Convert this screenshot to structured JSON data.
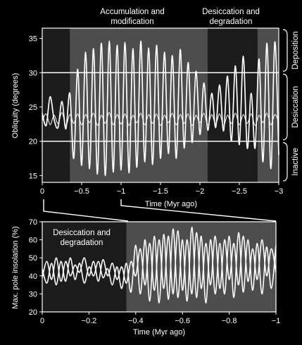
{
  "chart_data": [
    {
      "type": "line",
      "ylabel": "Obliquity (degrees)",
      "xlabel": "Time (Myr ago)",
      "xlim": [
        0,
        -3
      ],
      "ylim": [
        14,
        36.5
      ],
      "xticks": [
        "0",
        "−0.5",
        "−1",
        "−1.5",
        "−2",
        "−2.5",
        "−3"
      ],
      "xtick_values": [
        0,
        -0.5,
        -1,
        -1.5,
        -2,
        -2.5,
        -3
      ],
      "yticks": [
        "15",
        "20",
        "25",
        "30",
        "35"
      ],
      "ytick_values": [
        15,
        20,
        25,
        30,
        35
      ],
      "threshold_lines": [
        30,
        20
      ],
      "shaded_periods": [
        {
          "from": 0,
          "to": -0.35,
          "shade": "#1c1c1c"
        },
        {
          "from": -0.35,
          "to": -2.1,
          "shade": "#4d4d4d"
        },
        {
          "from": -2.1,
          "to": -2.73,
          "shade": "#1c1c1c"
        },
        {
          "from": -2.73,
          "to": -3,
          "shade": "#4d4d4d"
        }
      ],
      "annotations_top": [
        {
          "lines": [
            "Accumulation and",
            "modification"
          ]
        },
        {
          "lines": [
            "Desiccation and",
            "degradation"
          ]
        }
      ],
      "regimes": [
        {
          "label": "Deposition",
          "from": 30,
          "to": 36.5
        },
        {
          "label": "Desiccation",
          "from": 20,
          "to": 30
        },
        {
          "label": "Inactive",
          "from": 14,
          "to": 20
        }
      ],
      "series": [
        {
          "x": [
            0,
            -0.05,
            -0.1,
            -0.15,
            -0.2,
            -0.25,
            -0.3,
            -0.35,
            -0.4,
            -0.45,
            -0.5,
            -0.55,
            -0.6,
            -0.65,
            -0.7,
            -0.75,
            -0.8,
            -0.85,
            -0.9,
            -0.95,
            -1.0,
            -1.05,
            -1.1,
            -1.15,
            -1.2,
            -1.25,
            -1.3,
            -1.35,
            -1.4,
            -1.45,
            -1.5,
            -1.55,
            -1.6,
            -1.65,
            -1.7,
            -1.75,
            -1.8,
            -1.85,
            -1.9,
            -1.95,
            -2.0,
            -2.05,
            -2.1,
            -2.15,
            -2.2,
            -2.25,
            -2.3,
            -2.35,
            -2.4,
            -2.45,
            -2.5,
            -2.55,
            -2.6,
            -2.65,
            -2.7,
            -2.75,
            -2.8,
            -2.85,
            -2.9,
            -2.95,
            -3.0
          ],
          "values": [
            24.1,
            22.3,
            26.5,
            23.2,
            22.0,
            25.8,
            21.8,
            27.0,
            17.5,
            30.5,
            16.5,
            33.0,
            16.0,
            33.5,
            15.2,
            34.3,
            15.0,
            34.6,
            15.5,
            34.0,
            15.8,
            34.4,
            15.4,
            33.5,
            16.2,
            34.6,
            17.0,
            33.6,
            16.6,
            34.0,
            17.5,
            33.0,
            18.2,
            32.5,
            17.5,
            33.4,
            19.0,
            31.5,
            19.8,
            30.2,
            21.0,
            28.5,
            21.6,
            27.0,
            22.0,
            28.2,
            21.5,
            29.5,
            20.0,
            31.0,
            19.5,
            32.4,
            19.0,
            27.0,
            19.0,
            32.0,
            17.0,
            34.3,
            16.0,
            34.5,
            18.0
          ]
        },
        {
          "x": [
            0,
            -0.05,
            -0.1,
            -0.15,
            -0.2,
            -0.25,
            -0.3,
            -0.35,
            -0.4,
            -0.45,
            -0.5,
            -0.55,
            -0.6,
            -0.65,
            -0.7,
            -0.75,
            -0.8,
            -0.85,
            -0.9,
            -0.95,
            -1.0,
            -1.05,
            -1.1,
            -1.15,
            -1.2,
            -1.25,
            -1.3,
            -1.35,
            -1.4,
            -1.45,
            -1.5,
            -1.55,
            -1.6,
            -1.65,
            -1.7,
            -1.75,
            -1.8,
            -1.85,
            -1.9,
            -1.95,
            -2.0,
            -2.05,
            -2.1,
            -2.15,
            -2.2,
            -2.25,
            -2.3,
            -2.35,
            -2.4,
            -2.45,
            -2.5,
            -2.55,
            -2.6,
            -2.65,
            -2.7,
            -2.75,
            -2.8,
            -2.85,
            -2.9,
            -2.95,
            -3.0
          ],
          "values": [
            23.0,
            24.0,
            22.4,
            23.8,
            22.6,
            24.2,
            22.3,
            23.9,
            22.6,
            24.0,
            22.4,
            23.9,
            22.7,
            24.1,
            22.3,
            23.8,
            22.6,
            24.2,
            22.4,
            23.9,
            22.5,
            24.0,
            22.3,
            23.8,
            22.7,
            24.1,
            22.4,
            23.9,
            22.6,
            24.0,
            22.3,
            23.8,
            22.7,
            24.1,
            22.4,
            23.9,
            22.6,
            24.0,
            22.3,
            23.8,
            22.7,
            24.1,
            22.4,
            23.9,
            22.5,
            24.0,
            22.3,
            23.8,
            22.6,
            24.1,
            22.4,
            23.9,
            22.6,
            24.0,
            22.3,
            23.8,
            22.7,
            24.1,
            22.4,
            23.9,
            22.8
          ]
        }
      ]
    },
    {
      "type": "line",
      "ylabel": "Max. pole insolation (%)",
      "xlabel": "Time (Myr ago)",
      "xlim": [
        0,
        -1
      ],
      "ylim": [
        20,
        70
      ],
      "xticks": [
        "0",
        "−0.2",
        "−0.4",
        "−0.6",
        "−0.8",
        "−1"
      ],
      "xtick_values": [
        0,
        -0.2,
        -0.4,
        -0.6,
        -0.8,
        -1
      ],
      "yticks": [
        "20",
        "30",
        "40",
        "50",
        "60",
        "70"
      ],
      "ytick_values": [
        20,
        30,
        40,
        50,
        60,
        70
      ],
      "shaded_periods": [
        {
          "from": 0,
          "to": -0.36,
          "shade": "#1c1c1c"
        },
        {
          "from": -0.36,
          "to": -1,
          "shade": "#4d4d4d"
        }
      ],
      "annotations": [
        {
          "lines": [
            "Desiccation and",
            "degradation"
          ]
        }
      ],
      "series": [
        {
          "x": [
            0,
            -0.02,
            -0.04,
            -0.06,
            -0.08,
            -0.1,
            -0.12,
            -0.14,
            -0.16,
            -0.18,
            -0.2,
            -0.22,
            -0.24,
            -0.26,
            -0.28,
            -0.3,
            -0.32,
            -0.34,
            -0.36,
            -0.38,
            -0.4,
            -0.42,
            -0.44,
            -0.46,
            -0.48,
            -0.5,
            -0.52,
            -0.54,
            -0.56,
            -0.58,
            -0.6,
            -0.62,
            -0.64,
            -0.66,
            -0.68,
            -0.7,
            -0.72,
            -0.74,
            -0.76,
            -0.78,
            -0.8,
            -0.82,
            -0.84,
            -0.86,
            -0.88,
            -0.9,
            -0.92,
            -0.94,
            -0.96,
            -0.98,
            -1.0
          ],
          "values": [
            44,
            36,
            47,
            35,
            48,
            37,
            50,
            38,
            47,
            36,
            45,
            40,
            48,
            39,
            44,
            35,
            45,
            33,
            47,
            31,
            57,
            30,
            60,
            26,
            62,
            25,
            63,
            27,
            66,
            28,
            60,
            26,
            67,
            28,
            62,
            25,
            60,
            30,
            58,
            30,
            62,
            28,
            64,
            31,
            60,
            32,
            58,
            30,
            56,
            33,
            57
          ]
        },
        {
          "x": [
            0,
            -0.02,
            -0.04,
            -0.06,
            -0.08,
            -0.1,
            -0.12,
            -0.14,
            -0.16,
            -0.18,
            -0.2,
            -0.22,
            -0.24,
            -0.26,
            -0.28,
            -0.3,
            -0.32,
            -0.34,
            -0.36,
            -0.38,
            -0.4,
            -0.42,
            -0.44,
            -0.46,
            -0.48,
            -0.5,
            -0.52,
            -0.54,
            -0.56,
            -0.58,
            -0.6,
            -0.62,
            -0.64,
            -0.66,
            -0.68,
            -0.7,
            -0.72,
            -0.74,
            -0.76,
            -0.78,
            -0.8,
            -0.82,
            -0.84,
            -0.86,
            -0.88,
            -0.9,
            -0.92,
            -0.94,
            -0.96,
            -0.98,
            -1.0
          ],
          "values": [
            39,
            48,
            38,
            50,
            37,
            48,
            40,
            46,
            42,
            50,
            40,
            48,
            37,
            49,
            40,
            47,
            38,
            45,
            36,
            48,
            40,
            55,
            35,
            58,
            32,
            60,
            33,
            62,
            30,
            65,
            32,
            60,
            30,
            64,
            33,
            58,
            35,
            62,
            33,
            60,
            38,
            58,
            35,
            62,
            37,
            55,
            38,
            60,
            40,
            55,
            42
          ]
        }
      ]
    }
  ]
}
